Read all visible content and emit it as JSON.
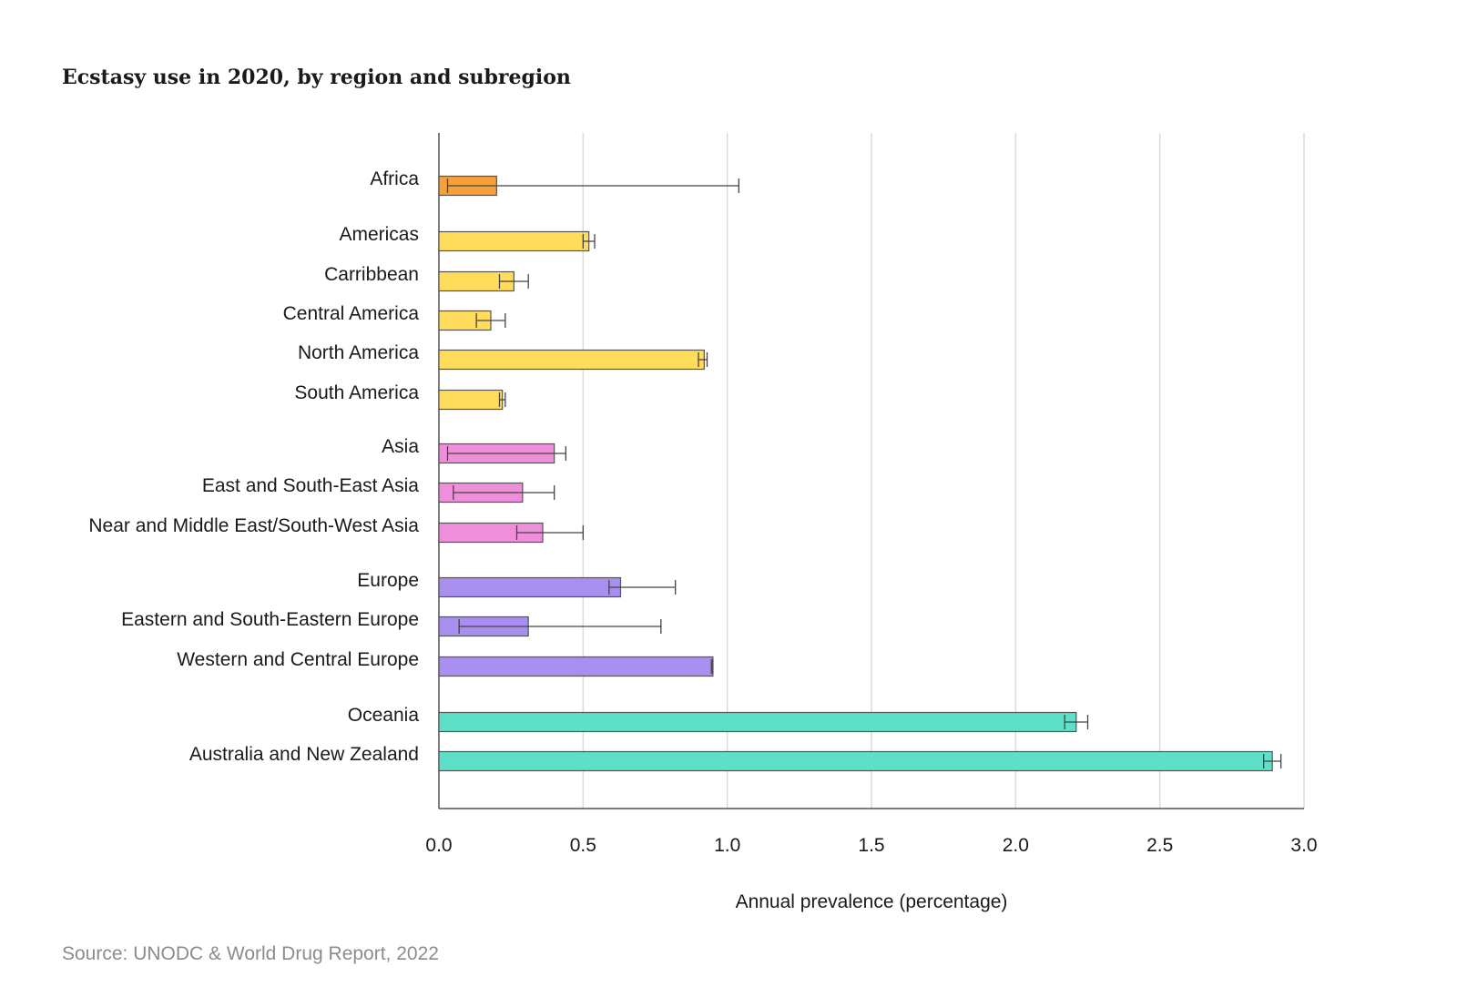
{
  "chart_data": {
    "type": "bar",
    "orientation": "horizontal",
    "title": "Ecstasy use in 2020, by region and subregion",
    "xlabel": "Annual prevalence (percentage)",
    "ylabel": "",
    "xlim": [
      0,
      3.0
    ],
    "xticks": [
      "0.0",
      "0.5",
      "1.0",
      "1.5",
      "2.0",
      "2.5",
      "3.0"
    ],
    "grid": "vertical",
    "source": "Source: UNODC & World Drug Report, 2022",
    "colors": {
      "Africa": "#f5a03a",
      "Americas": "#ffdc5c",
      "Asia": "#ef8fdb",
      "Europe": "#a98ff0",
      "Oceania": "#5ee0c8"
    },
    "categories": [
      {
        "label": "Africa",
        "group": "Africa",
        "value": 0.2,
        "low": 0.03,
        "high": 1.04
      },
      {
        "label": "Americas",
        "group": "Americas",
        "value": 0.52,
        "low": 0.5,
        "high": 0.54
      },
      {
        "label": "Carribbean",
        "group": "Americas",
        "value": 0.26,
        "low": 0.21,
        "high": 0.31
      },
      {
        "label": "Central America",
        "group": "Americas",
        "value": 0.18,
        "low": 0.13,
        "high": 0.23
      },
      {
        "label": "North America",
        "group": "Americas",
        "value": 0.92,
        "low": 0.9,
        "high": 0.93
      },
      {
        "label": "South America",
        "group": "Americas",
        "value": 0.22,
        "low": 0.21,
        "high": 0.23
      },
      {
        "label": "Asia",
        "group": "Asia",
        "value": 0.4,
        "low": 0.03,
        "high": 0.44
      },
      {
        "label": "East and South-East Asia",
        "group": "Asia",
        "value": 0.29,
        "low": 0.05,
        "high": 0.4
      },
      {
        "label": "Near and Middle East/South-West Asia",
        "group": "Asia",
        "value": 0.36,
        "low": 0.27,
        "high": 0.5
      },
      {
        "label": "Europe",
        "group": "Europe",
        "value": 0.63,
        "low": 0.59,
        "high": 0.82
      },
      {
        "label": "Eastern and South-Eastern Europe",
        "group": "Europe",
        "value": 0.31,
        "low": 0.07,
        "high": 0.77
      },
      {
        "label": "Western and Central Europe",
        "group": "Europe",
        "value": 0.95,
        "low": 0.945,
        "high": 0.95
      },
      {
        "label": "Oceania",
        "group": "Oceania",
        "value": 2.21,
        "low": 2.17,
        "high": 2.25
      },
      {
        "label": "Australia and New Zealand",
        "group": "Oceania",
        "value": 2.89,
        "low": 2.86,
        "high": 2.92
      }
    ]
  }
}
